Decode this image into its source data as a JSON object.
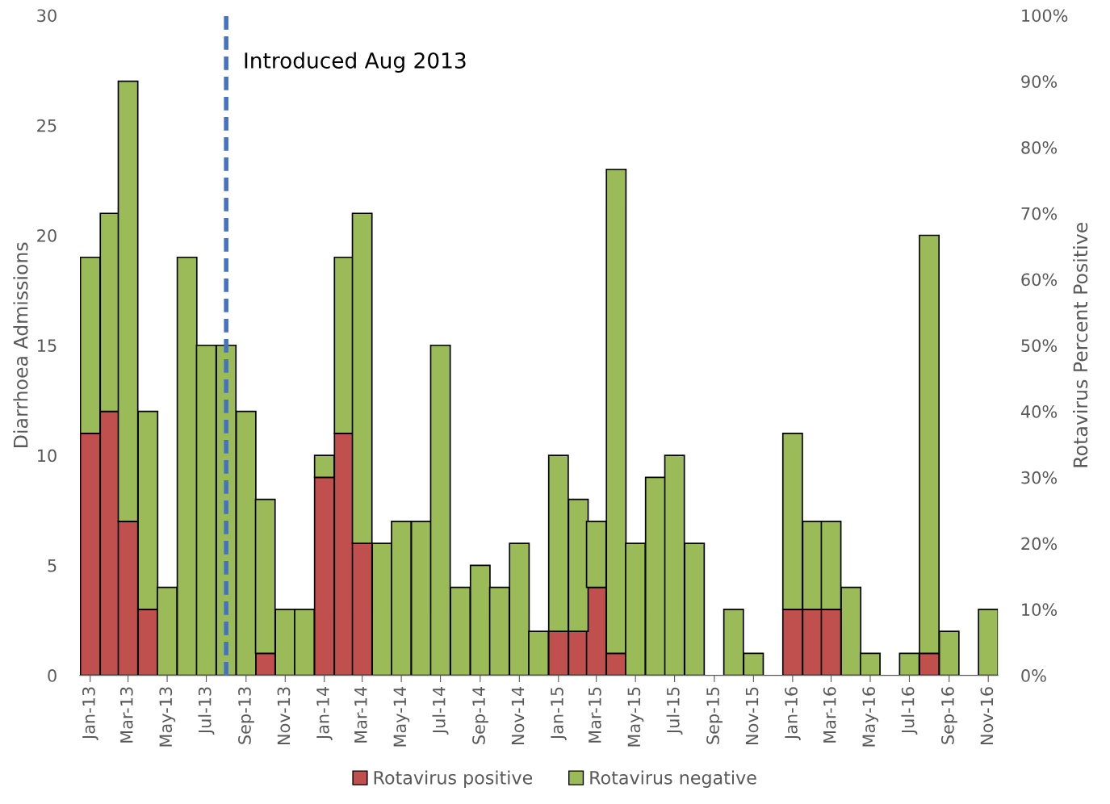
{
  "chart_data": {
    "type": "bar",
    "stacked": true,
    "ylabel": "Diarrhoea Admissions",
    "y2label": "Rotavirus Percent Positive",
    "x": [
      "2013-01",
      "2013-02",
      "2013-03",
      "2013-04",
      "2013-05",
      "2013-06",
      "2013-07",
      "2013-08",
      "2013-09",
      "2013-10",
      "2013-11",
      "2013-12",
      "2014-01",
      "2014-02",
      "2014-03",
      "2014-04",
      "2014-05",
      "2014-06",
      "2014-07",
      "2014-08",
      "2014-09",
      "2014-10",
      "2014-11",
      "2014-12",
      "2015-01",
      "2015-02",
      "2015-03",
      "2015-04",
      "2015-05",
      "2015-06",
      "2015-07",
      "2015-08",
      "2015-09",
      "2015-10",
      "2015-11",
      "2015-12",
      "2016-01",
      "2016-02",
      "2016-03",
      "2016-04",
      "2016-05",
      "2016-06",
      "2016-07",
      "2016-08",
      "2016-09",
      "2016-10",
      "2016-11"
    ],
    "xlim": [
      "2012-12-16",
      "2016-11-16"
    ],
    "xticks": [
      {
        "value": "2013-01",
        "label": "Jan-13"
      },
      {
        "value": "2013-03",
        "label": "Mar-13"
      },
      {
        "value": "2013-05",
        "label": "May-13"
      },
      {
        "value": "2013-07",
        "label": "Jul-13"
      },
      {
        "value": "2013-09",
        "label": "Sep-13"
      },
      {
        "value": "2013-11",
        "label": "Nov-13"
      },
      {
        "value": "2014-01",
        "label": "Jan-14"
      },
      {
        "value": "2014-03",
        "label": "Mar-14"
      },
      {
        "value": "2014-05",
        "label": "May-14"
      },
      {
        "value": "2014-07",
        "label": "Jul-14"
      },
      {
        "value": "2014-09",
        "label": "Sep-14"
      },
      {
        "value": "2014-11",
        "label": "Nov-14"
      },
      {
        "value": "2015-01",
        "label": "Jan-15"
      },
      {
        "value": "2015-03",
        "label": "Mar-15"
      },
      {
        "value": "2015-05",
        "label": "May-15"
      },
      {
        "value": "2015-07",
        "label": "Jul-15"
      },
      {
        "value": "2015-09",
        "label": "Sep-15"
      },
      {
        "value": "2015-11",
        "label": "Nov-15"
      },
      {
        "value": "2016-01",
        "label": "Jan-16"
      },
      {
        "value": "2016-03",
        "label": "Mar-16"
      },
      {
        "value": "2016-05",
        "label": "May-16"
      },
      {
        "value": "2016-07",
        "label": "Jul-16"
      },
      {
        "value": "2016-09",
        "label": "Sep-16"
      },
      {
        "value": "2016-11",
        "label": "Nov-16"
      }
    ],
    "series": [
      {
        "name": "Rotavirus positive",
        "color": "#c0504d",
        "values": [
          11,
          12,
          7,
          3,
          0,
          0,
          0,
          0,
          0,
          1,
          0,
          0,
          9,
          11,
          6,
          0,
          0,
          0,
          0,
          0,
          0,
          0,
          0,
          0,
          2,
          2,
          4,
          1,
          0,
          0,
          0,
          0,
          0,
          0,
          0,
          0,
          3,
          3,
          3,
          0,
          0,
          0,
          0,
          1,
          0,
          0,
          0
        ]
      },
      {
        "name": "Rotavirus negative",
        "color": "#9bbb59",
        "values": [
          8,
          9,
          20,
          9,
          4,
          19,
          15,
          15,
          12,
          7,
          3,
          3,
          1,
          8,
          15,
          6,
          7,
          7,
          15,
          4,
          5,
          4,
          6,
          2,
          8,
          6,
          3,
          22,
          6,
          9,
          10,
          6,
          0,
          3,
          1,
          0,
          8,
          4,
          4,
          4,
          1,
          0,
          1,
          19,
          2,
          0,
          3
        ]
      }
    ],
    "ylim": [
      0,
      30
    ],
    "yticks": [
      0,
      5,
      10,
      15,
      20,
      25,
      30
    ],
    "y2lim": [
      0,
      100
    ],
    "y2ticks": [
      {
        "value": 0,
        "label": "0%"
      },
      {
        "value": 10,
        "label": "10%"
      },
      {
        "value": 20,
        "label": "20%"
      },
      {
        "value": 30,
        "label": "30%"
      },
      {
        "value": 40,
        "label": "40%"
      },
      {
        "value": 50,
        "label": "50%"
      },
      {
        "value": 60,
        "label": "60%"
      },
      {
        "value": 70,
        "label": "70%"
      },
      {
        "value": 80,
        "label": "80%"
      },
      {
        "value": 90,
        "label": "90%"
      },
      {
        "value": 100,
        "label": "100%"
      }
    ],
    "ref_lines": [
      {
        "axis": "x",
        "value": "2013-08",
        "label": "Introduced Aug 2013",
        "color": "#4472c4",
        "line_style": "dashed"
      }
    ],
    "grid": false,
    "legend": "bottom"
  }
}
